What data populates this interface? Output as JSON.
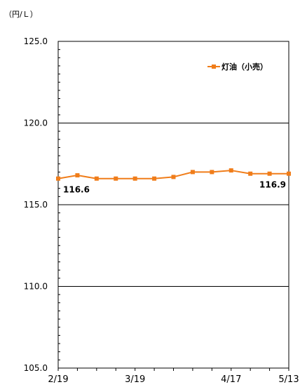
{
  "chart_data": {
    "type": "line",
    "unit_label": "（円/Ｌ）",
    "ylim": [
      105.0,
      125.0
    ],
    "y_ticks": [
      "105.0",
      "110.0",
      "115.0",
      "120.0",
      "125.0"
    ],
    "x_tick_labels": [
      "2/19",
      "3/19",
      "4/17",
      "5/13"
    ],
    "x_tick_indices": [
      0,
      4,
      9,
      12
    ],
    "grid": true,
    "legend_position": "top-right",
    "series": [
      {
        "name": "灯油（小売）",
        "color": "#f07d1a",
        "values": [
          116.6,
          116.8,
          116.6,
          116.6,
          116.6,
          116.6,
          116.7,
          117.0,
          117.0,
          117.1,
          116.9,
          116.9,
          116.9
        ]
      }
    ],
    "annotations": [
      {
        "text": "116.6",
        "index": 0
      },
      {
        "text": "116.9",
        "index": 12
      }
    ]
  }
}
